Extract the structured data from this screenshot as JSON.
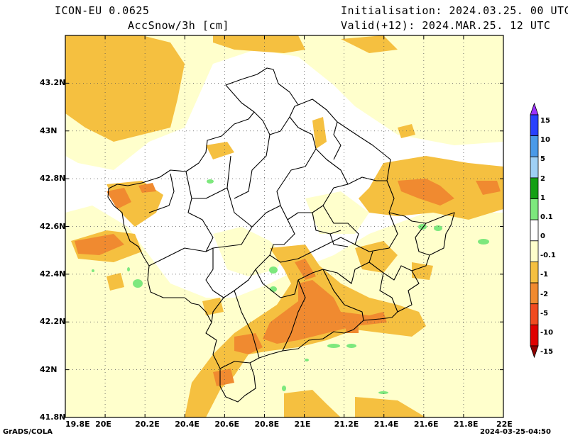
{
  "header": {
    "model": "ICON-EU 0.0625",
    "variable": "AccSnow/3h [cm]",
    "init": "Initialisation: 2024.03.25. 00 UTC",
    "valid": "Valid(+12): 2024.MAR.25. 12 UTC"
  },
  "axes": {
    "lon_ticks": [
      "19.8E",
      "20E",
      "20.2E",
      "20.4E",
      "20.6E",
      "20.8E",
      "21E",
      "21.2E",
      "21.4E",
      "21.6E",
      "21.8E",
      "22E"
    ],
    "lat_ticks": [
      "43.2N",
      "43N",
      "42.8N",
      "42.6N",
      "42.4N",
      "42.2N",
      "42N",
      "41.8N"
    ],
    "lon_range": [
      19.8,
      22.0
    ],
    "lat_range": [
      41.8,
      43.4
    ],
    "grid": true
  },
  "legend": {
    "labels": [
      "15",
      "10",
      "5",
      "2",
      "1",
      "0.1",
      "0",
      "-0.1",
      "-1",
      "-2",
      "-5",
      "-10",
      "-15"
    ],
    "colors": [
      "#9b30ff",
      "#2840ff",
      "#4a9ae8",
      "#9fd0f5",
      "#14a014",
      "#7de87d",
      "#ffffff",
      "#ffffcc",
      "#f5c040",
      "#f08a30",
      "#f04a20",
      "#e00000",
      "#900000"
    ]
  },
  "footer": {
    "left": "GrADS/COLA",
    "right": "2024-03-25-04:50"
  }
}
